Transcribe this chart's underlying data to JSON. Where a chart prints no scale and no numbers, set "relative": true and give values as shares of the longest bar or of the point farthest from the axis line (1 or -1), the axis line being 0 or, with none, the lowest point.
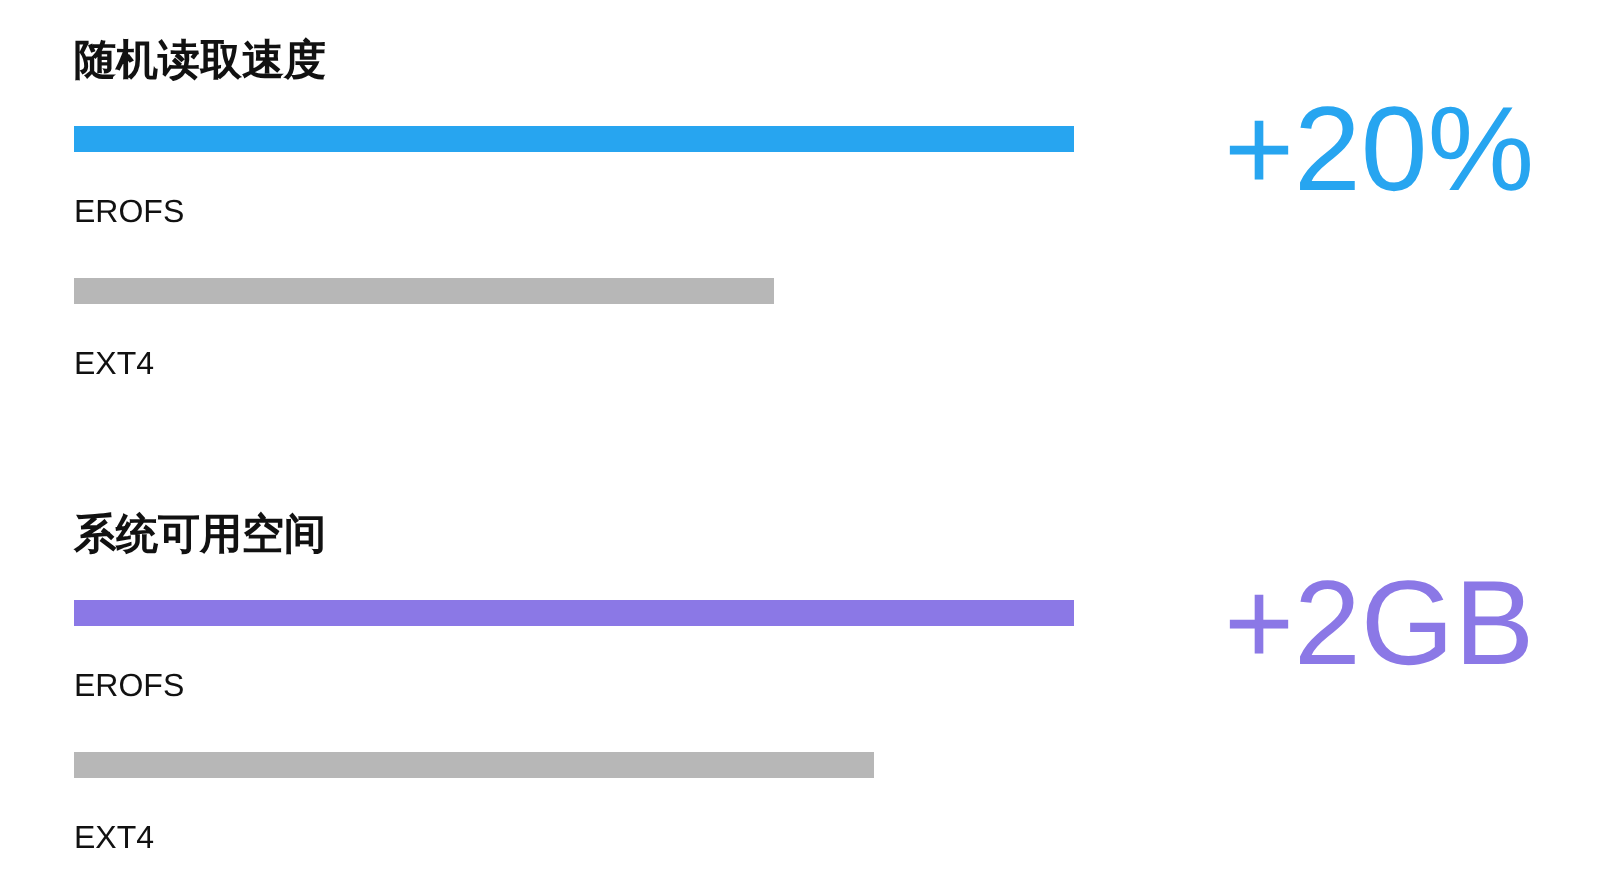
{
  "chart_data": [
    {
      "type": "bar",
      "orientation": "horizontal",
      "relative": true,
      "title": "随机读取速度",
      "categories": [
        "EROFS",
        "EXT4"
      ],
      "values": [
        1,
        0.7
      ],
      "colors": [
        "#27a5f0",
        "#b7b7b7"
      ],
      "annotations": [
        "+20%"
      ]
    },
    {
      "type": "bar",
      "orientation": "horizontal",
      "relative": true,
      "title": "系统可用空间",
      "categories": [
        "EROFS",
        "EXT4"
      ],
      "values": [
        1,
        0.8
      ],
      "colors": [
        "#8b78e6",
        "#b7b7b7"
      ],
      "annotations": [
        "+2GB"
      ]
    }
  ]
}
